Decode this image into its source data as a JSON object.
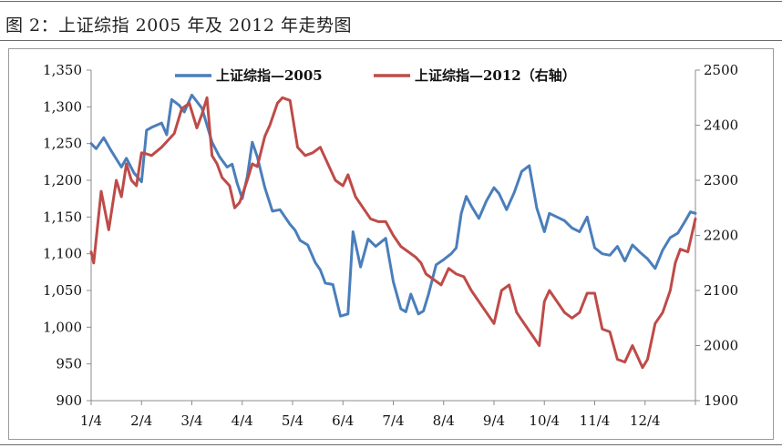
{
  "figure": {
    "title": "图 2：上证综指 2005 年及 2012 年走势图"
  },
  "colors": {
    "series_2005": "#4a7ebb",
    "series_2012": "#be4b48",
    "axis": "#8c8c8c",
    "frame": "#9a9a9a"
  },
  "chart_data": {
    "type": "line",
    "title": "",
    "xlabel": "",
    "ylabel": "",
    "y2label": "",
    "grid": false,
    "legend_position": "top-center",
    "xlim": [
      0,
      12
    ],
    "ylim": [
      900,
      1350
    ],
    "y2lim": [
      1900,
      2500
    ],
    "x_ticks": [
      "1/4",
      "2/4",
      "3/4",
      "4/4",
      "5/4",
      "6/4",
      "7/4",
      "8/4",
      "9/4",
      "10/4",
      "11/4",
      "12/4"
    ],
    "y_ticks": [
      "900",
      "950",
      "1,000",
      "1,050",
      "1,100",
      "1,150",
      "1,200",
      "1,250",
      "1,300",
      "1,350"
    ],
    "y_tick_values": [
      900,
      950,
      1000,
      1050,
      1100,
      1150,
      1200,
      1250,
      1300,
      1350
    ],
    "y2_ticks": [
      "1900",
      "2000",
      "2100",
      "2200",
      "2300",
      "2400",
      "2500"
    ],
    "y2_tick_values": [
      1900,
      2000,
      2100,
      2200,
      2300,
      2400,
      2500
    ],
    "series": [
      {
        "name": "上证综指—2005",
        "axis": "left",
        "x": [
          0,
          0.1,
          0.25,
          0.4,
          0.6,
          0.7,
          0.85,
          1.0,
          1.1,
          1.2,
          1.4,
          1.5,
          1.6,
          1.75,
          1.85,
          2.0,
          2.2,
          2.4,
          2.55,
          2.7,
          2.8,
          2.9,
          3.0,
          3.1,
          3.2,
          3.3,
          3.45,
          3.6,
          3.75,
          3.95,
          4.05,
          4.15,
          4.3,
          4.45,
          4.55,
          4.65,
          4.8,
          4.95,
          5.1,
          5.2,
          5.35,
          5.5,
          5.65,
          5.85,
          6.0,
          6.15,
          6.25,
          6.35,
          6.5,
          6.6,
          6.7,
          6.85,
          7.0,
          7.15,
          7.25,
          7.35,
          7.45,
          7.55,
          7.7,
          7.85,
          8.0,
          8.1,
          8.25,
          8.4,
          8.55,
          8.7,
          8.85,
          9.0,
          9.1,
          9.25,
          9.4,
          9.55,
          9.7,
          9.85,
          10.0,
          10.15,
          10.3,
          10.45,
          10.6,
          10.75,
          10.9,
          11.05,
          11.2,
          11.35,
          11.5,
          11.65,
          11.8,
          11.9,
          12.0
        ],
        "values": [
          1250,
          1243,
          1258,
          1240,
          1218,
          1230,
          1210,
          1198,
          1268,
          1272,
          1278,
          1262,
          1310,
          1302,
          1293,
          1316,
          1298,
          1252,
          1232,
          1218,
          1222,
          1196,
          1175,
          1205,
          1252,
          1232,
          1190,
          1158,
          1160,
          1140,
          1132,
          1118,
          1112,
          1088,
          1078,
          1060,
          1058,
          1015,
          1018,
          1130,
          1082,
          1120,
          1110,
          1121,
          1062,
          1025,
          1021,
          1045,
          1018,
          1022,
          1045,
          1085,
          1092,
          1100,
          1108,
          1155,
          1178,
          1165,
          1148,
          1172,
          1190,
          1182,
          1160,
          1183,
          1212,
          1220,
          1162,
          1130,
          1155,
          1150,
          1145,
          1135,
          1130,
          1150,
          1108,
          1100,
          1098,
          1110,
          1090,
          1112,
          1102,
          1093,
          1080,
          1105,
          1122,
          1128,
          1145,
          1157,
          1155
        ]
      },
      {
        "name": "上证综指—2012（右轴）",
        "axis": "right",
        "x": [
          0,
          0.05,
          0.2,
          0.35,
          0.5,
          0.6,
          0.7,
          0.8,
          0.9,
          1.0,
          1.1,
          1.2,
          1.4,
          1.5,
          1.65,
          1.8,
          1.95,
          2.1,
          2.2,
          2.3,
          2.4,
          2.5,
          2.6,
          2.75,
          2.85,
          2.95,
          3.1,
          3.2,
          3.3,
          3.45,
          3.55,
          3.7,
          3.8,
          3.95,
          4.1,
          4.25,
          4.4,
          4.55,
          4.7,
          4.85,
          5.0,
          5.1,
          5.25,
          5.4,
          5.55,
          5.7,
          5.85,
          6.0,
          6.15,
          6.3,
          6.45,
          6.55,
          6.65,
          6.8,
          6.95,
          7.1,
          7.25,
          7.4,
          7.55,
          7.7,
          7.85,
          8.0,
          8.15,
          8.3,
          8.45,
          8.6,
          8.75,
          8.9,
          9.0,
          9.1,
          9.25,
          9.4,
          9.55,
          9.7,
          9.85,
          10.0,
          10.15,
          10.3,
          10.45,
          10.6,
          10.75,
          10.85,
          10.95,
          11.05,
          11.2,
          11.35,
          11.5,
          11.6,
          11.7,
          11.85,
          12.0
        ],
        "values": [
          2170,
          2150,
          2280,
          2210,
          2300,
          2270,
          2330,
          2300,
          2290,
          2350,
          2348,
          2345,
          2360,
          2370,
          2385,
          2430,
          2440,
          2395,
          2420,
          2450,
          2345,
          2330,
          2305,
          2290,
          2250,
          2260,
          2300,
          2330,
          2325,
          2380,
          2400,
          2440,
          2450,
          2445,
          2360,
          2345,
          2350,
          2360,
          2330,
          2300,
          2290,
          2310,
          2270,
          2250,
          2230,
          2225,
          2225,
          2200,
          2180,
          2170,
          2160,
          2150,
          2130,
          2120,
          2110,
          2140,
          2130,
          2125,
          2100,
          2080,
          2060,
          2040,
          2100,
          2110,
          2060,
          2040,
          2020,
          2000,
          2080,
          2100,
          2080,
          2060,
          2050,
          2060,
          2095,
          2095,
          2030,
          2025,
          1975,
          1970,
          2000,
          1980,
          1960,
          1975,
          2040,
          2060,
          2100,
          2150,
          2175,
          2170,
          2230
        ]
      }
    ]
  }
}
